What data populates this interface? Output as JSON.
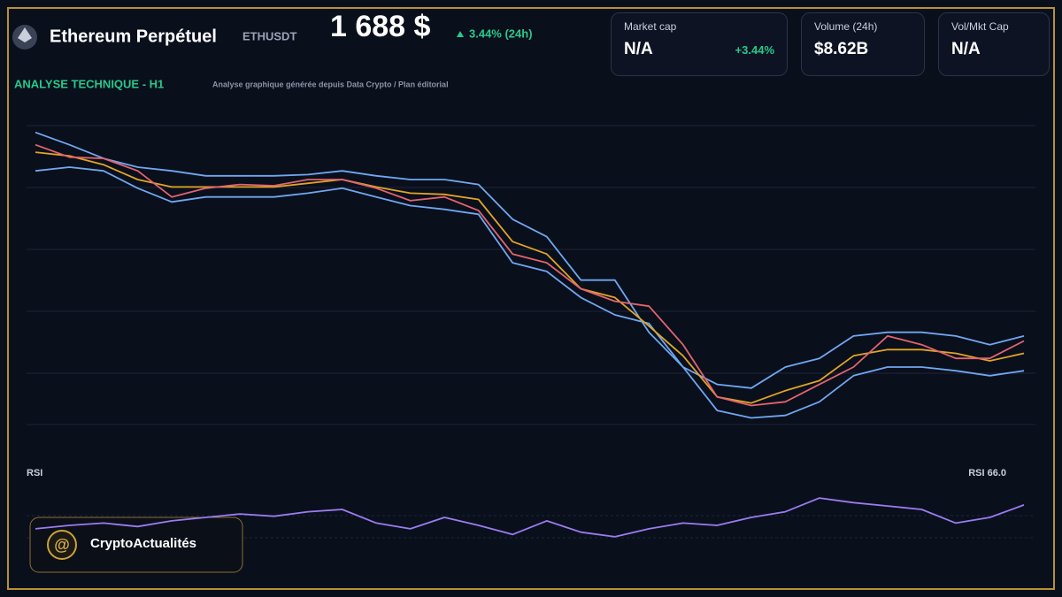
{
  "header": {
    "title": "Ethereum Perpétuel",
    "symbol": "ETHUSDT",
    "price": "1 688 $",
    "change": "3.44% (24h)"
  },
  "cards": [
    {
      "label": "Market cap",
      "value": "N/A",
      "change": "+3.44%"
    },
    {
      "label": "Volume (24h)",
      "value": "$8.62B"
    },
    {
      "label": "Vol/Mkt Cap",
      "value": "N/A"
    }
  ],
  "section": {
    "title": "ANALYSE TECHNIQUE - H1",
    "subtitle": "Analyse graphique générée depuis Data Crypto / Plan éditorial"
  },
  "brand": "CryptoActualités",
  "chart_data": [
    {
      "type": "line",
      "ylim": [
        1610,
        1870
      ],
      "series": [
        {
          "color": "#6fa8f0",
          "values": [
            1856,
            1846,
            1835,
            1828,
            1825,
            1821,
            1821,
            1821,
            1822,
            1825,
            1821,
            1818,
            1818,
            1814,
            1786,
            1772,
            1737,
            1737,
            1695,
            1667,
            1653,
            1650,
            1667,
            1674,
            1692,
            1695,
            1695,
            1692,
            1685,
            1692
          ]
        },
        {
          "color": "#6fa8f0",
          "values": [
            1825,
            1828,
            1825,
            1811,
            1800,
            1804,
            1804,
            1804,
            1807,
            1811,
            1804,
            1797,
            1794,
            1790,
            1751,
            1744,
            1723,
            1709,
            1702,
            1667,
            1632,
            1626,
            1628,
            1639,
            1660,
            1667,
            1667,
            1664,
            1660,
            1664
          ]
        },
        {
          "color": "#e0a526",
          "values": [
            1840,
            1837,
            1830,
            1818,
            1812,
            1812,
            1812,
            1812,
            1815,
            1818,
            1812,
            1807,
            1806,
            1802,
            1768,
            1758,
            1730,
            1723,
            1700,
            1676,
            1643,
            1638,
            1648,
            1656,
            1676,
            1681,
            1681,
            1678,
            1672,
            1678
          ]
        },
        {
          "color": "#e2646f",
          "values": [
            1846,
            1836,
            1835,
            1825,
            1804,
            1811,
            1814,
            1813,
            1818,
            1818,
            1811,
            1801,
            1804,
            1793,
            1758,
            1751,
            1730,
            1720,
            1716,
            1685,
            1643,
            1636,
            1639,
            1653,
            1667,
            1692,
            1685,
            1674,
            1674,
            1688
          ]
        }
      ]
    },
    {
      "type": "line",
      "title": "RSI",
      "label": "RSI 66.0",
      "ylim": [
        20,
        90
      ],
      "series": [
        {
          "color": "#9b7cf0",
          "values": [
            45,
            48,
            50,
            47,
            52,
            55,
            58,
            56,
            60,
            62,
            50,
            45,
            55,
            48,
            40,
            52,
            42,
            38,
            45,
            50,
            48,
            55,
            60,
            72,
            68,
            65,
            62,
            50,
            55,
            66.0
          ]
        }
      ]
    }
  ]
}
